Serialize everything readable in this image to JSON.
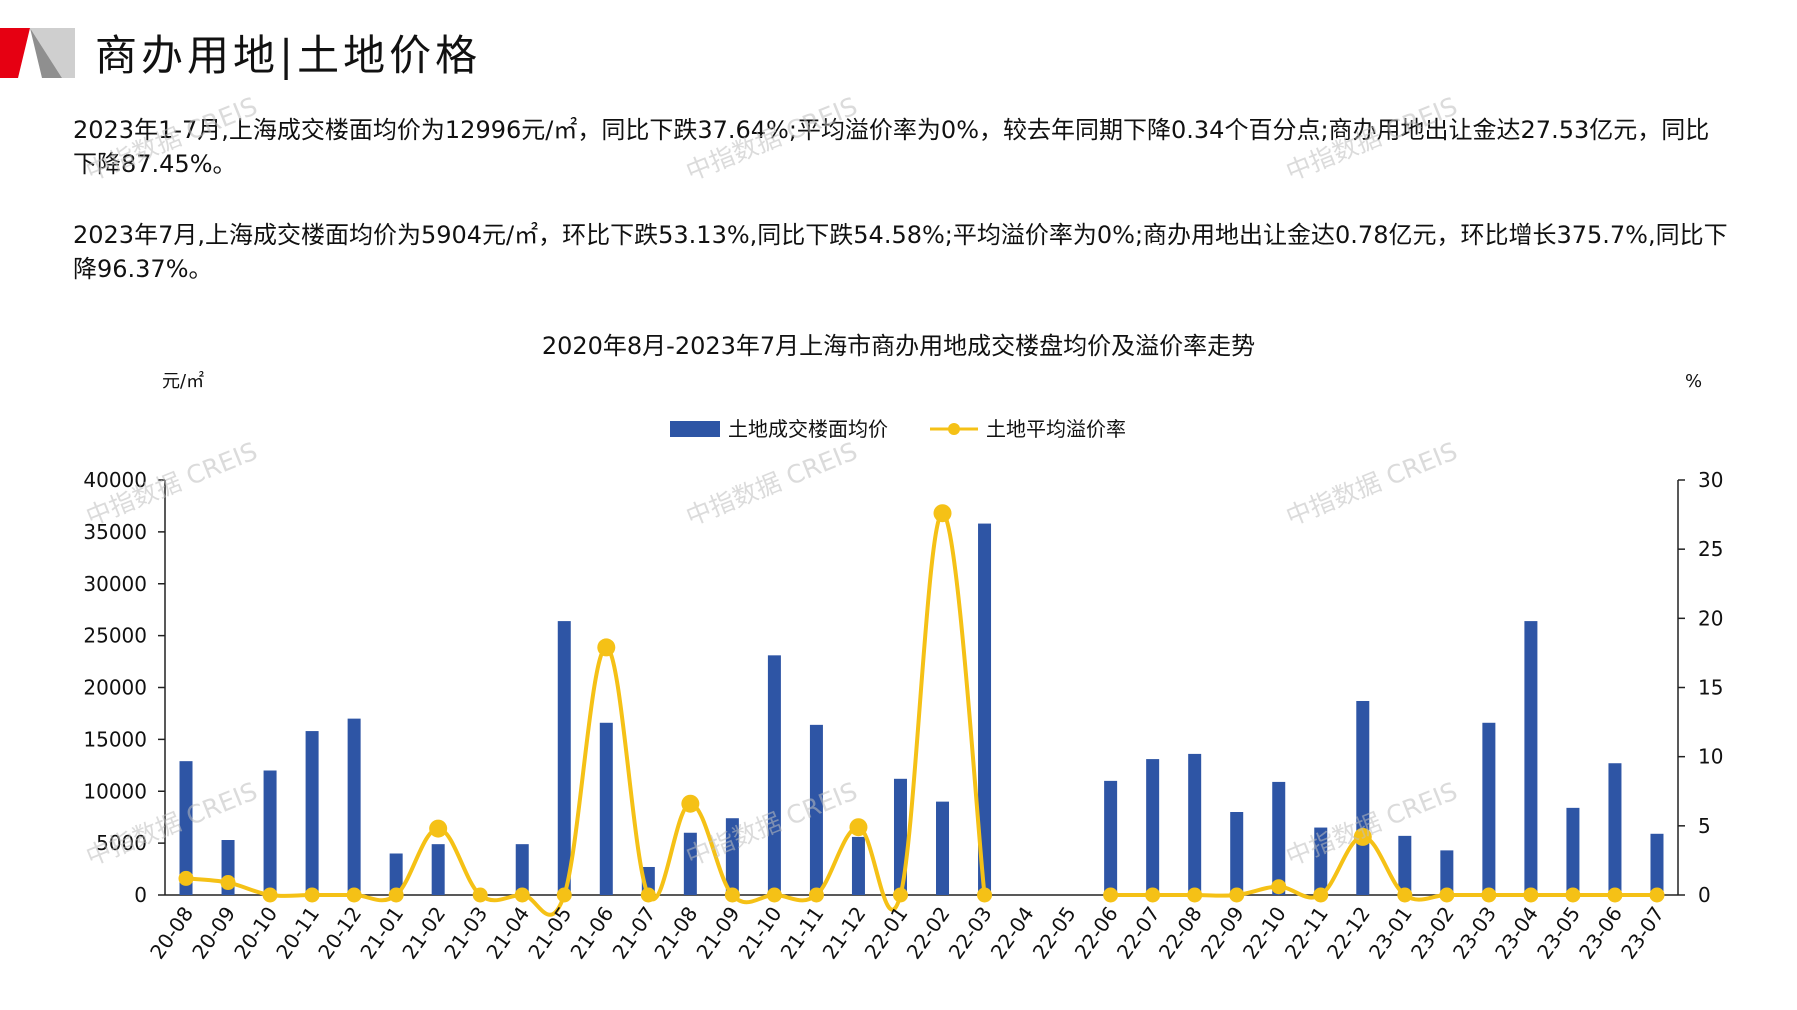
{
  "header": {
    "title": "商办用地|土地价格",
    "accent_color": "#e60012"
  },
  "paragraphs": [
    "2023年1-7月,上海成交楼面均价为12996元/㎡，同比下跌37.64%;平均溢价率为0%，较去年同期下降0.34个百分点;商办用地出让金达27.53亿元，同比下降87.45%。",
    "2023年7月,上海成交楼面均价为5904元/㎡，环比下跌53.13%,同比下跌54.58%;平均溢价率为0%;商办用地出让金达0.78亿元，环比增长375.7%,同比下降96.37%。"
  ],
  "watermark": "中指数据 CREIS",
  "chart_data": {
    "type": "bar+line",
    "title": "2020年8月-2023年7月上海市商办用地成交楼盘均价及溢价率走势",
    "y_left_unit": "元/㎡",
    "y_right_unit": "%",
    "ylim_left": [
      0,
      40000
    ],
    "ylim_right": [
      0,
      30
    ],
    "y_left_ticks": [
      "0",
      "5000",
      "10000",
      "15000",
      "20000",
      "25000",
      "30000",
      "35000",
      "40000"
    ],
    "y_right_ticks": [
      "0",
      "5",
      "10",
      "15",
      "20",
      "25",
      "30"
    ],
    "legend_position": "top-center",
    "grid": false,
    "categories": [
      "20-08",
      "20-09",
      "20-10",
      "20-11",
      "20-12",
      "21-01",
      "21-02",
      "21-03",
      "21-04",
      "21-05",
      "21-06",
      "21-07",
      "21-08",
      "21-09",
      "21-10",
      "21-11",
      "21-12",
      "22-01",
      "22-02",
      "22-03",
      "22-04",
      "22-05",
      "22-06",
      "22-07",
      "22-08",
      "22-09",
      "22-10",
      "22-11",
      "22-12",
      "23-01",
      "23-02",
      "23-03",
      "23-04",
      "23-05",
      "23-06",
      "23-07"
    ],
    "series": [
      {
        "name": "土地成交楼面均价",
        "kind": "bar",
        "axis": "left",
        "color": "#2e55a5",
        "values": [
          12900,
          5300,
          12000,
          15800,
          17000,
          4000,
          4900,
          null,
          4900,
          26400,
          16600,
          2700,
          6000,
          7400,
          23100,
          16400,
          5600,
          11200,
          9000,
          35800,
          null,
          null,
          11000,
          13100,
          13600,
          8000,
          10900,
          6500,
          18700,
          5700,
          4300,
          16600,
          26400,
          8400,
          12700,
          5900
        ]
      },
      {
        "name": "土地平均溢价率",
        "kind": "line",
        "axis": "right",
        "color": "#f5c116",
        "values": [
          1.2,
          0.9,
          0,
          0,
          0,
          0,
          4.8,
          0,
          0,
          0,
          17.9,
          0,
          6.6,
          0,
          0,
          0,
          4.9,
          0,
          27.6,
          0,
          null,
          null,
          0,
          0,
          0,
          0,
          0.6,
          0,
          4.2,
          0,
          0,
          0,
          0,
          0,
          0,
          0
        ]
      }
    ]
  }
}
